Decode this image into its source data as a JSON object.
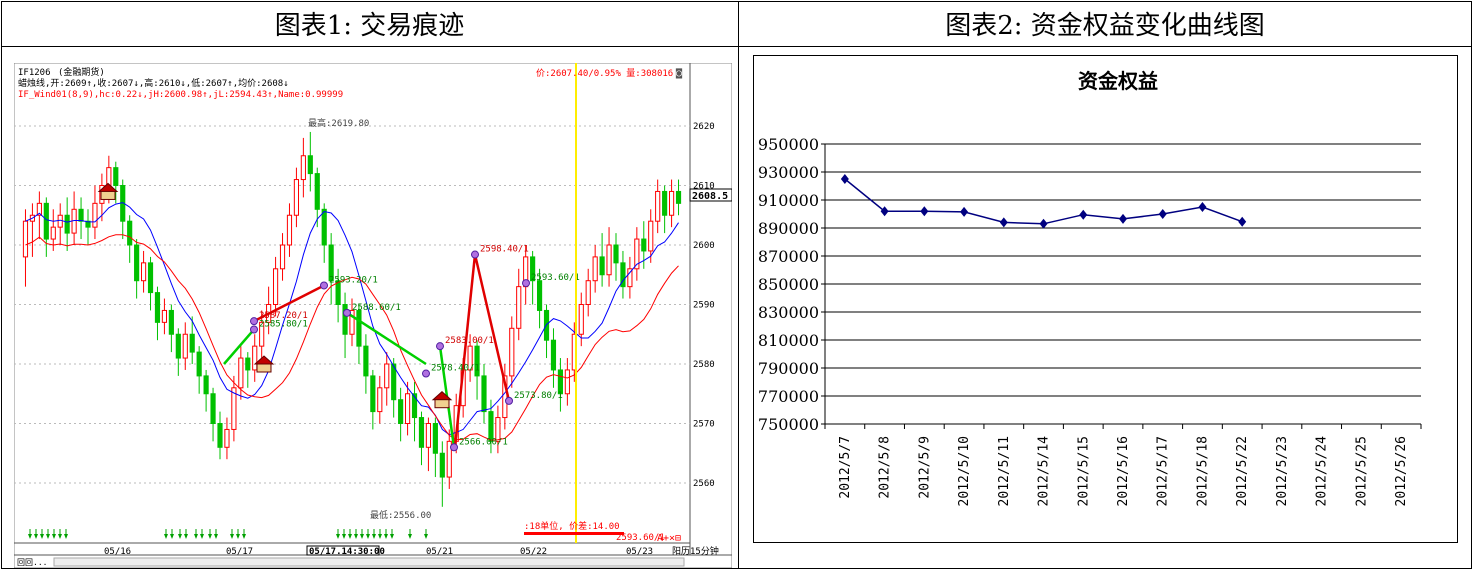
{
  "panels": {
    "left_title": "图表1: 交易痕迹",
    "right_title": "图表2: 资金权益变化曲线图"
  },
  "colors": {
    "up": "#ff0000",
    "down": "#00c000",
    "ma_blue": "#0000ff",
    "ma_red": "#ff0000",
    "trade_red": "#e00000",
    "trade_green": "#00d000",
    "equity_line": "#000080",
    "cursor": "#ffff00"
  },
  "kline": {
    "symbol": "IF1206",
    "market": "(金融期货)",
    "line1": "蜡烛线,开:2609↑,收:2607↓,高:2610↓,低:2607↑,均价:2608↓",
    "line2": "IF_Wind01(8,9),hc:0.22↓,jH:2600.98↑,jL:2594.43↑,Name:0.99999",
    "price_info": "价:2607.40/0.95% 量:308016",
    "current_price": "2608.5",
    "y_ticks": [
      "2620",
      "2610",
      "2600",
      "2590",
      "2580",
      "2570",
      "2560"
    ],
    "x_dates": [
      "05/16",
      "05/17",
      "05/21",
      "05/22",
      "05/23"
    ],
    "cursor_time": "05/17.14:30:00",
    "period": "阳历15分钟",
    "high_label": "最高:2619.80",
    "low_label": "最低:2556.00",
    "bottom_info": ":18单位, 价差:14.00",
    "bottom_price": "2593.60/1",
    "corner": "回回...",
    "trade_labels": [
      "2587.20/1",
      "2585.80/1",
      "2593.20/1",
      "2588.60/1",
      "2583.00/1",
      "2578.40/1",
      "2566.00/1",
      "2598.40/1",
      "2573.80/1",
      "2593.60/1"
    ],
    "ohlc": [
      [
        2598,
        2604,
        2593,
        2606
      ],
      [
        2604,
        2605,
        2598,
        2607
      ],
      [
        2605,
        2607,
        2601,
        2609
      ],
      [
        2607,
        2601,
        2598,
        2608
      ],
      [
        2601,
        2603,
        2599,
        2606
      ],
      [
        2603,
        2605,
        2600,
        2607
      ],
      [
        2605,
        2602,
        2599,
        2608
      ],
      [
        2602,
        2606,
        2600,
        2609
      ],
      [
        2606,
        2604,
        2601,
        2608
      ],
      [
        2604,
        2603,
        2600,
        2606
      ],
      [
        2603,
        2607,
        2601,
        2610
      ],
      [
        2607,
        2610,
        2604,
        2612
      ],
      [
        2610,
        2613,
        2607,
        2615
      ],
      [
        2613,
        2610,
        2607,
        2614
      ],
      [
        2610,
        2604,
        2601,
        2611
      ],
      [
        2604,
        2600,
        2597,
        2605
      ],
      [
        2600,
        2594,
        2591,
        2601
      ],
      [
        2594,
        2597,
        2592,
        2599
      ],
      [
        2597,
        2592,
        2589,
        2598
      ],
      [
        2592,
        2587,
        2584,
        2593
      ],
      [
        2587,
        2589,
        2585,
        2591
      ],
      [
        2589,
        2585,
        2582,
        2590
      ],
      [
        2585,
        2581,
        2578,
        2586
      ],
      [
        2581,
        2585,
        2579,
        2587
      ],
      [
        2585,
        2582,
        2580,
        2588
      ],
      [
        2582,
        2578,
        2575,
        2583
      ],
      [
        2578,
        2575,
        2572,
        2579
      ],
      [
        2575,
        2570,
        2567,
        2576
      ],
      [
        2570,
        2566,
        2564,
        2572
      ],
      [
        2566,
        2569,
        2564,
        2571
      ],
      [
        2569,
        2576,
        2567,
        2578
      ],
      [
        2576,
        2581,
        2574,
        2583
      ],
      [
        2581,
        2579,
        2576,
        2582
      ],
      [
        2579,
        2583,
        2577,
        2585
      ],
      [
        2583,
        2587,
        2581,
        2589
      ],
      [
        2587,
        2590,
        2585,
        2593
      ],
      [
        2590,
        2596,
        2588,
        2598
      ],
      [
        2596,
        2600,
        2594,
        2602
      ],
      [
        2600,
        2605,
        2598,
        2607
      ],
      [
        2605,
        2611,
        2603,
        2613
      ],
      [
        2611,
        2615,
        2608,
        2618
      ],
      [
        2615,
        2612,
        2609,
        2619
      ],
      [
        2612,
        2606,
        2603,
        2613
      ],
      [
        2606,
        2600,
        2597,
        2607
      ],
      [
        2600,
        2594,
        2590,
        2602
      ],
      [
        2594,
        2590,
        2587,
        2596
      ],
      [
        2590,
        2585,
        2581,
        2592
      ],
      [
        2585,
        2589,
        2583,
        2591
      ],
      [
        2589,
        2583,
        2580,
        2590
      ],
      [
        2583,
        2578,
        2575,
        2585
      ],
      [
        2578,
        2572,
        2569,
        2579
      ],
      [
        2572,
        2576,
        2570,
        2578
      ],
      [
        2576,
        2580,
        2573,
        2582
      ],
      [
        2580,
        2574,
        2571,
        2581
      ],
      [
        2574,
        2570,
        2567,
        2576
      ],
      [
        2570,
        2575,
        2568,
        2577
      ],
      [
        2575,
        2571,
        2567,
        2577
      ],
      [
        2571,
        2566,
        2563,
        2572
      ],
      [
        2566,
        2570,
        2562,
        2571
      ],
      [
        2570,
        2565,
        2561,
        2571
      ],
      [
        2565,
        2561,
        2556,
        2567
      ],
      [
        2561,
        2567,
        2559,
        2569
      ],
      [
        2567,
        2573,
        2565,
        2575
      ],
      [
        2573,
        2579,
        2571,
        2581
      ],
      [
        2579,
        2583,
        2577,
        2585
      ],
      [
        2583,
        2578,
        2574,
        2584
      ],
      [
        2578,
        2572,
        2570,
        2580
      ],
      [
        2572,
        2567,
        2565,
        2574
      ],
      [
        2567,
        2571,
        2565,
        2573
      ],
      [
        2571,
        2578,
        2569,
        2580
      ],
      [
        2578,
        2586,
        2576,
        2588
      ],
      [
        2586,
        2593,
        2584,
        2596
      ],
      [
        2593,
        2598,
        2590,
        2600
      ],
      [
        2598,
        2594,
        2590,
        2599
      ],
      [
        2594,
        2589,
        2586,
        2596
      ],
      [
        2589,
        2584,
        2581,
        2590
      ],
      [
        2584,
        2579,
        2576,
        2586
      ],
      [
        2579,
        2575,
        2572,
        2581
      ],
      [
        2575,
        2579,
        2573,
        2581
      ],
      [
        2579,
        2585,
        2577,
        2587
      ],
      [
        2585,
        2590,
        2583,
        2592
      ],
      [
        2590,
        2594,
        2588,
        2596
      ],
      [
        2594,
        2598,
        2592,
        2600
      ],
      [
        2598,
        2595,
        2593,
        2602
      ],
      [
        2595,
        2600,
        2593,
        2603
      ],
      [
        2600,
        2597,
        2594,
        2602
      ],
      [
        2597,
        2593,
        2591,
        2599
      ],
      [
        2593,
        2596,
        2591,
        2598
      ],
      [
        2596,
        2601,
        2594,
        2603
      ],
      [
        2601,
        2599,
        2596,
        2604
      ],
      [
        2599,
        2604,
        2597,
        2606
      ],
      [
        2604,
        2609,
        2602,
        2611
      ],
      [
        2609,
        2605,
        2602,
        2610
      ],
      [
        2605,
        2609,
        2603,
        2611
      ],
      [
        2609,
        2607,
        2605,
        2611
      ]
    ]
  },
  "chart_data": {
    "type": "line",
    "title": "资金权益",
    "xlabel": "",
    "ylabel": "",
    "ylim": [
      750000,
      950000
    ],
    "y_ticks": [
      750000,
      770000,
      790000,
      810000,
      830000,
      850000,
      870000,
      890000,
      910000,
      930000,
      950000
    ],
    "categories": [
      "2012/5/7",
      "2012/5/8",
      "2012/5/9",
      "2012/5/10",
      "2012/5/11",
      "2012/5/14",
      "2012/5/15",
      "2012/5/16",
      "2012/5/17",
      "2012/5/18",
      "2012/5/22",
      "2012/5/23",
      "2012/5/24",
      "2012/5/25",
      "2012/5/26"
    ],
    "values": [
      925000,
      902000,
      902000,
      901500,
      894000,
      893000,
      899500,
      896500,
      900000,
      905000,
      894500,
      null,
      null,
      null,
      null
    ],
    "grid": true,
    "legend": "none"
  }
}
